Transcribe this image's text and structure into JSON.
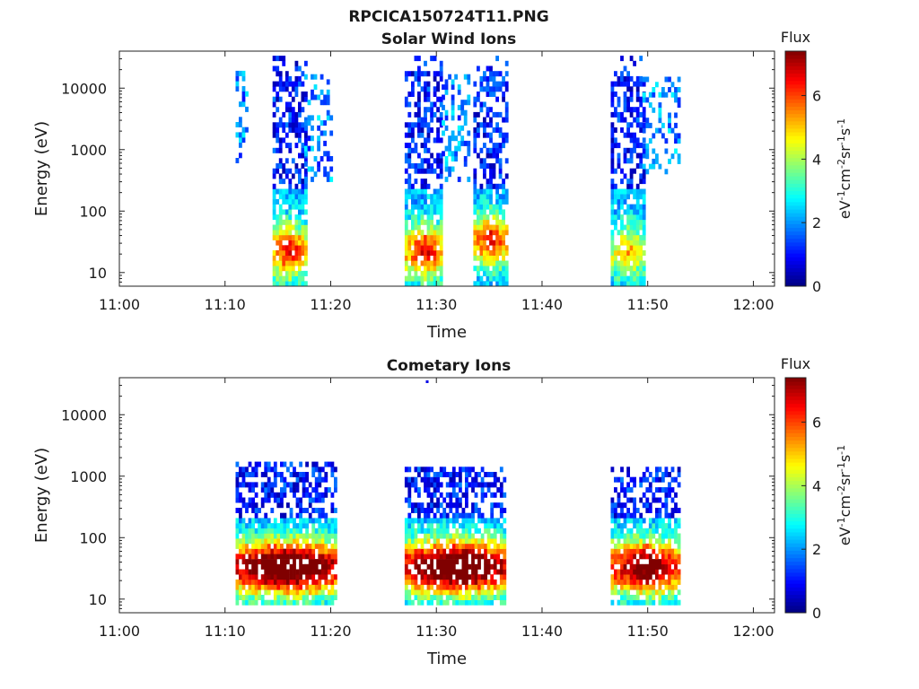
{
  "figure": {
    "title": "RPCICA150724T11.PNG"
  },
  "chart_data": [
    {
      "type": "heatmap",
      "title": "Solar Wind Ions",
      "xlabel": "Time",
      "ylabel": "Energy (eV)",
      "x_ticks": [
        "11:00",
        "11:10",
        "11:20",
        "11:30",
        "11:40",
        "11:50",
        "12:00"
      ],
      "xlim": [
        "11:00",
        "12:02"
      ],
      "y_scale": "log",
      "y_ticks": [
        10,
        100,
        1000,
        10000
      ],
      "ylim": [
        6,
        40000
      ],
      "colorbar": {
        "title": "Flux",
        "unit_label": "eV-1cm-2sr-1s-1",
        "ticks": [
          0,
          2,
          4,
          6
        ],
        "range": [
          0,
          7.4
        ],
        "colormap": "jet"
      },
      "bursts": [
        {
          "start": "11:11",
          "end": "11:12",
          "energy_range": [
            500,
            18000
          ],
          "flux": "low"
        },
        {
          "start": "11:14.5",
          "end": "11:17.5",
          "energy_range": [
            6,
            40000
          ],
          "flux": "low-high",
          "peak_energy": 20,
          "peak_flux": 4.5
        },
        {
          "start": "11:17.5",
          "end": "11:20",
          "energy_range": [
            300,
            15000
          ],
          "flux": "low"
        },
        {
          "start": "11:27",
          "end": "11:30.5",
          "energy_range": [
            6,
            40000
          ],
          "flux": "low-high",
          "peak_energy": 20,
          "peak_flux": 4.5
        },
        {
          "start": "11:30.5",
          "end": "11:33",
          "energy_range": [
            300,
            15000
          ],
          "flux": "low"
        },
        {
          "start": "11:33.5",
          "end": "11:36.5",
          "energy_range": [
            6,
            40000
          ],
          "flux": "low-high",
          "peak_energy": 30,
          "peak_flux": 4.5
        },
        {
          "start": "11:46.5",
          "end": "11:49.5",
          "energy_range": [
            6,
            40000
          ],
          "flux": "low-high",
          "peak_energy": 20,
          "peak_flux": 3
        },
        {
          "start": "11:49.5",
          "end": "11:53",
          "energy_range": [
            400,
            15000
          ],
          "flux": "low"
        }
      ]
    },
    {
      "type": "heatmap",
      "title": "Cometary Ions",
      "xlabel": "Time",
      "ylabel": "Energy (eV)",
      "x_ticks": [
        "11:00",
        "11:10",
        "11:20",
        "11:30",
        "11:40",
        "11:50",
        "12:00"
      ],
      "xlim": [
        "11:00",
        "12:02"
      ],
      "y_scale": "log",
      "y_ticks": [
        10,
        100,
        1000,
        10000
      ],
      "ylim": [
        6,
        40000
      ],
      "colorbar": {
        "title": "Flux",
        "unit_label": "eV-1cm-2sr-1s-1",
        "ticks": [
          0,
          2,
          4,
          6
        ],
        "range": [
          0,
          7.4
        ],
        "colormap": "jet"
      },
      "bursts": [
        {
          "start": "11:11",
          "end": "11:20.5",
          "energy_range": [
            8,
            1500
          ],
          "flux": "low-high",
          "peak_energy": 30,
          "peak_flux": 7
        },
        {
          "start": "11:27",
          "end": "11:36.5",
          "energy_range": [
            8,
            1200
          ],
          "flux": "low-high",
          "peak_energy": 30,
          "peak_flux": 7
        },
        {
          "start": "11:46.5",
          "end": "11:53",
          "energy_range": [
            8,
            1400
          ],
          "flux": "low-high",
          "peak_energy": 30,
          "peak_flux": 6
        }
      ],
      "annotations": [
        {
          "type": "isolated-point",
          "time": "11:29",
          "energy": 35000
        }
      ]
    }
  ]
}
